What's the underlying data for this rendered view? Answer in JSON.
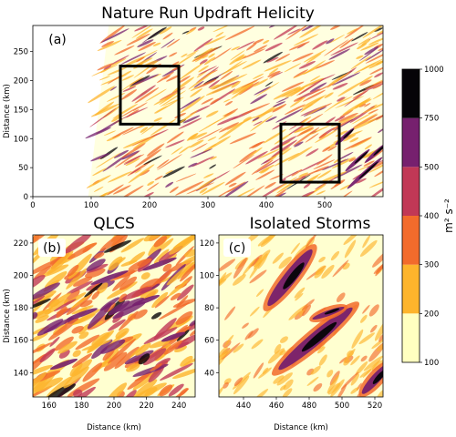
{
  "figure": {
    "colors": {
      "bin_100_200": "#ffffc0",
      "bin_200_300": "#fdb42c",
      "bin_300_400": "#f26b2c",
      "bin_400_500": "#c13856",
      "bin_500_750": "#76206e",
      "bin_750_1000": "#060408"
    }
  },
  "chart_data": [
    {
      "panel": "a",
      "type": "heatmap",
      "title": "Nature Run Updraft Helicity",
      "tag": "(a)",
      "xlabel": "",
      "ylabel": "Distance (km)",
      "xlim": [
        0,
        600
      ],
      "ylim": [
        0,
        295
      ],
      "xticks": [
        0,
        100,
        200,
        300,
        400,
        500
      ],
      "yticks": [
        0,
        50,
        100,
        150,
        200,
        250
      ],
      "data_region": {
        "x_start_min": 95,
        "x_start_max": 130
      },
      "boxes": [
        {
          "name": "QLCS",
          "x": [
            150,
            250
          ],
          "y": [
            125,
            225
          ]
        },
        {
          "name": "Isolated Storms",
          "x": [
            425,
            525
          ],
          "y": [
            25,
            125
          ]
        }
      ]
    },
    {
      "panel": "b",
      "type": "heatmap",
      "title": "QLCS",
      "tag": "(b)",
      "xlabel": "Distance (km)",
      "ylabel": "Distance (km)",
      "xlim": [
        150,
        250
      ],
      "ylim": [
        125,
        225
      ],
      "xticks": [
        160,
        180,
        200,
        220,
        240
      ],
      "yticks": [
        140,
        160,
        180,
        200,
        220
      ]
    },
    {
      "panel": "c",
      "type": "heatmap",
      "title": "Isolated Storms",
      "tag": "(c)",
      "xlabel": "Distance (km)",
      "ylabel": "",
      "xlim": [
        425,
        525
      ],
      "ylim": [
        25,
        125
      ],
      "xticks": [
        440,
        460,
        480,
        500,
        520
      ],
      "yticks": [
        40,
        60,
        80,
        100,
        120
      ]
    },
    {
      "type": "colorbar",
      "label": "m² s⁻²",
      "bounds": [
        100,
        200,
        300,
        400,
        500,
        750,
        1000
      ],
      "ticks": [
        "100",
        "200",
        "300",
        "400",
        "500",
        "750",
        "1000"
      ]
    }
  ]
}
